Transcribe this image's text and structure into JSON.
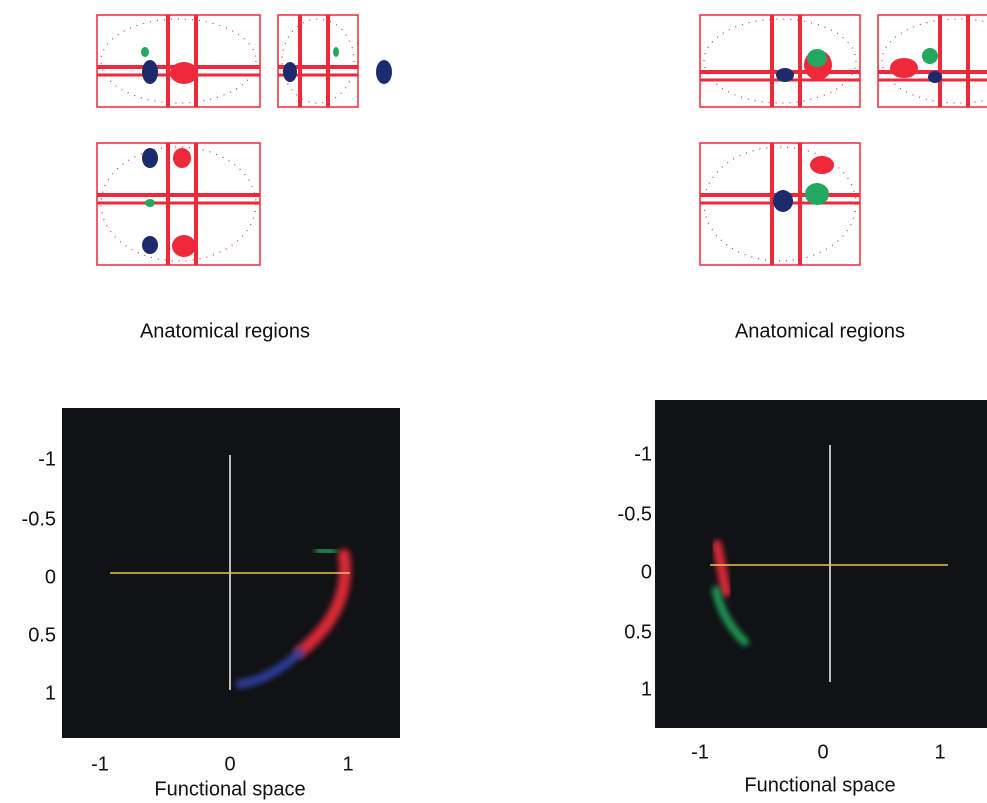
{
  "panels": [
    {
      "anatomical_label": "Anatomical regions",
      "functional": {
        "yticks": [
          -1,
          -0.5,
          0,
          0.5,
          1
        ],
        "xticks": [
          -1,
          0,
          1
        ],
        "xlabel": "Functional space"
      }
    },
    {
      "anatomical_label": "Anatomical regions",
      "functional": {
        "yticks": [
          -1,
          -0.5,
          0,
          0.5,
          1
        ],
        "xticks": [
          -1,
          0,
          1
        ],
        "xlabel": "Functional space"
      }
    }
  ]
}
